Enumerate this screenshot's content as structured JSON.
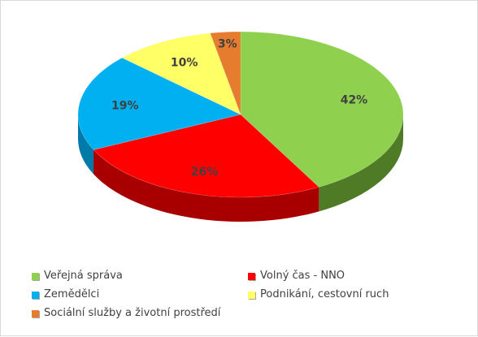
{
  "chart_data": {
    "type": "pie",
    "title": "",
    "categories": [
      "Veřejná správa",
      "Volný čas - NNO",
      "Zemědělci",
      "Podnikání, cestovní ruch",
      "Sociální služby a životní prostředí"
    ],
    "values": [
      42,
      26,
      19,
      10,
      3
    ],
    "labels": [
      "42%",
      "26%",
      "19%",
      "10%",
      "3%"
    ],
    "colors": [
      "#8fd14f",
      "#ff0000",
      "#00b0f0",
      "#ffff66",
      "#e67c2e"
    ],
    "side_colors": [
      "#4f7a26",
      "#a80000",
      "#007aa8",
      "#b0b030",
      "#9c4f14"
    ],
    "legend_position": "bottom",
    "style": "3d"
  }
}
